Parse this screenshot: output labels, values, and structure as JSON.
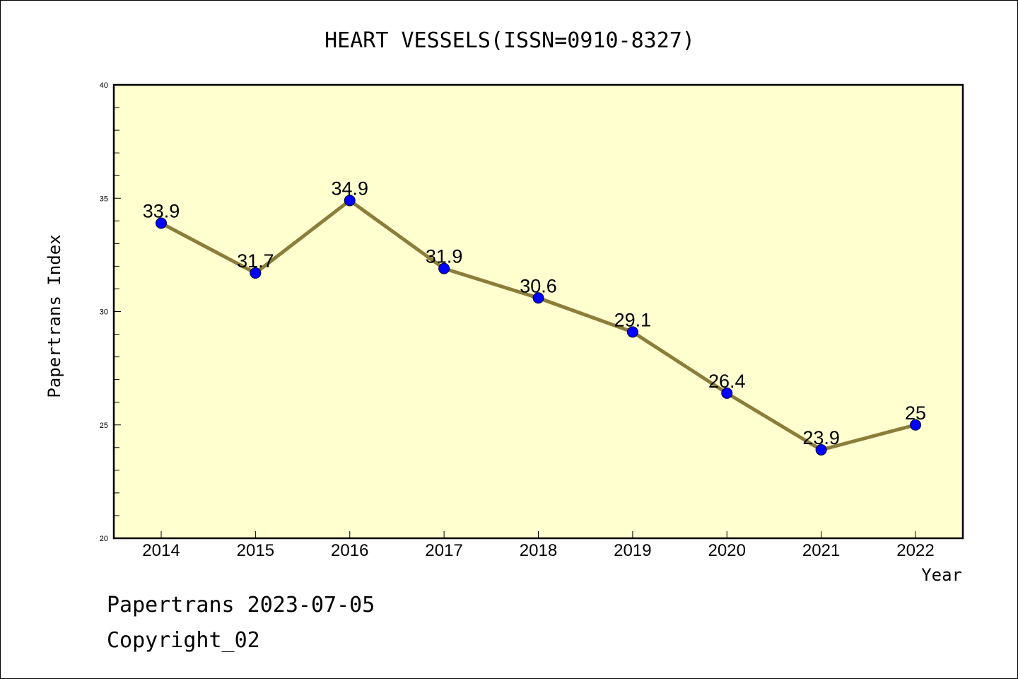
{
  "chart_data": {
    "type": "line",
    "title": "HEART VESSELS(ISSN=0910-8327)",
    "xlabel": "Year",
    "ylabel": "Papertrans Index",
    "categories": [
      "2014",
      "2015",
      "2016",
      "2017",
      "2018",
      "2019",
      "2020",
      "2021",
      "2022"
    ],
    "series": [
      {
        "values": [
          33.9,
          31.7,
          34.9,
          31.9,
          30.6,
          29.1,
          26.4,
          23.9,
          25
        ],
        "labels": [
          "33.9",
          "31.7",
          "34.9",
          "31.9",
          "30.6",
          "29.1",
          "26.4",
          "23.9",
          "25"
        ]
      }
    ],
    "ylim": [
      20,
      40
    ],
    "yticks": [
      "20",
      "25",
      "30",
      "35",
      "40"
    ],
    "grid": false,
    "legend": "none",
    "colors": {
      "plot_background": "#ffffd0",
      "line": "#8b7d3a",
      "marker": "#0000ff"
    }
  },
  "footer": {
    "line1": "Papertrans 2023-07-05",
    "line2": "Copyright_02"
  }
}
